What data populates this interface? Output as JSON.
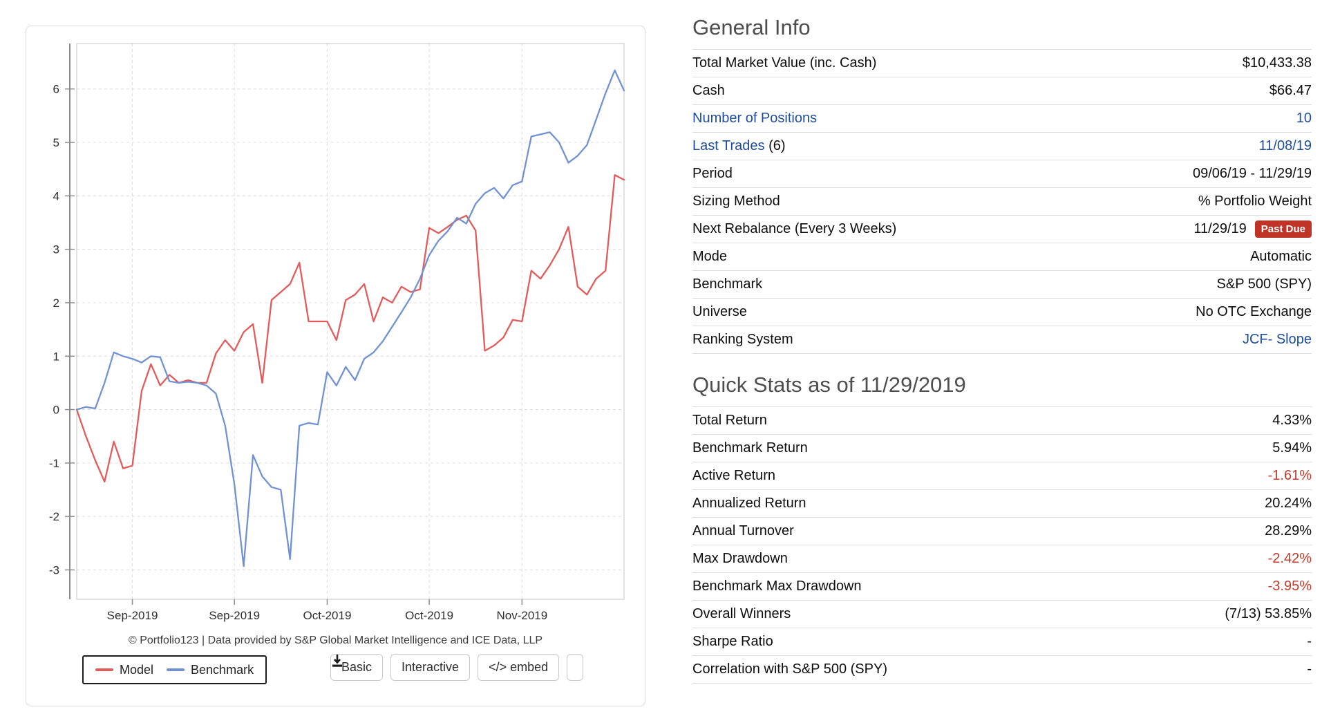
{
  "chart_card": {
    "legend": {
      "model_label": "Model",
      "benchmark_label": "Benchmark"
    },
    "controls": {
      "basic": "Basic",
      "interactive": "Interactive",
      "embed": "</> embed",
      "download_icon": "download-icon"
    },
    "attribution": "© Portfolio123 | Data provided by S&P Global Market Intelligence and ICE Data, LLP"
  },
  "chart_data": {
    "type": "line",
    "title": "",
    "xlabel": "",
    "ylabel": "",
    "grid": true,
    "legend_position": "bottom-left",
    "x_tick_labels": [
      "Sep-2019",
      "Sep-2019",
      "Oct-2019",
      "Oct-2019",
      "Nov-2019"
    ],
    "x_tick_days": [
      6,
      17,
      27,
      38,
      48
    ],
    "y_ticks": [
      6,
      5,
      4,
      3,
      2,
      1,
      0,
      -1,
      -2,
      -3
    ],
    "ylim": [
      -3.55,
      6.85
    ],
    "x_range_dates": "09/06/19 - 11/29/19",
    "series": [
      {
        "name": "Model",
        "color": "#e25b5b",
        "values": [
          0.0,
          -0.5,
          -0.95,
          -1.35,
          -0.6,
          -1.1,
          -1.05,
          0.35,
          0.85,
          0.45,
          0.65,
          0.5,
          0.55,
          0.5,
          0.5,
          1.05,
          1.3,
          1.1,
          1.45,
          1.6,
          0.5,
          2.05,
          2.2,
          2.35,
          2.75,
          1.65,
          1.65,
          1.65,
          1.3,
          2.05,
          2.15,
          2.35,
          1.65,
          2.1,
          2.0,
          2.3,
          2.2,
          2.25,
          3.4,
          3.3,
          3.42,
          3.55,
          3.63,
          3.35,
          1.1,
          1.2,
          1.35,
          1.68,
          1.65,
          2.6,
          2.45,
          2.7,
          3.0,
          3.42,
          2.3,
          2.15,
          2.45,
          2.6,
          4.39,
          4.3
        ]
      },
      {
        "name": "Benchmark",
        "color": "#7191d5",
        "values": [
          0.0,
          0.05,
          0.02,
          0.5,
          1.07,
          1.0,
          0.95,
          0.88,
          1.0,
          0.98,
          0.53,
          0.5,
          0.52,
          0.5,
          0.45,
          0.3,
          -0.3,
          -1.4,
          -2.93,
          -0.85,
          -1.25,
          -1.45,
          -1.5,
          -2.8,
          -0.3,
          -0.25,
          -0.28,
          0.7,
          0.45,
          0.8,
          0.55,
          0.95,
          1.07,
          1.28,
          1.55,
          1.82,
          2.1,
          2.45,
          2.89,
          3.16,
          3.34,
          3.59,
          3.48,
          3.85,
          4.05,
          4.15,
          3.95,
          4.2,
          4.27,
          5.11,
          5.15,
          5.19,
          5.0,
          4.62,
          4.75,
          4.95,
          5.43,
          5.92,
          6.35,
          5.97
        ]
      }
    ]
  },
  "general_info": {
    "title": "General Info",
    "rows": [
      {
        "label": "Total Market Value (inc. Cash)",
        "value": "$10,433.38"
      },
      {
        "label": "Cash",
        "value": "$66.47"
      },
      {
        "label": "Number of Positions",
        "value": "10",
        "label_link": true,
        "value_link": true
      },
      {
        "label": "Last Trades",
        "label_suffix": " (6)",
        "value": "11/08/19",
        "label_link": true,
        "value_link": true
      },
      {
        "label": "Period",
        "value": "09/06/19 - 11/29/19"
      },
      {
        "label": "Sizing Method",
        "value": "% Portfolio Weight"
      },
      {
        "label": "Next Rebalance (Every 3 Weeks)",
        "value": "11/29/19",
        "badge": "Past Due"
      },
      {
        "label": "Mode",
        "value": "Automatic"
      },
      {
        "label": "Benchmark",
        "value": "S&P 500 (SPY)"
      },
      {
        "label": "Universe",
        "value": "No OTC Exchange"
      },
      {
        "label": "Ranking System",
        "value": "JCF- Slope",
        "value_link": true
      }
    ]
  },
  "quick_stats": {
    "title": "Quick Stats as of 11/29/2019",
    "rows": [
      {
        "label": "Total Return",
        "value": "4.33%"
      },
      {
        "label": "Benchmark Return",
        "value": "5.94%"
      },
      {
        "label": "Active Return",
        "value": "-1.61%",
        "negative": true
      },
      {
        "label": "Annualized Return",
        "value": "20.24%"
      },
      {
        "label": "Annual Turnover",
        "value": "28.29%"
      },
      {
        "label": "Max Drawdown",
        "value": "-2.42%",
        "negative": true
      },
      {
        "label": "Benchmark Max Drawdown",
        "value": "-3.95%",
        "negative": true
      },
      {
        "label": "Overall Winners",
        "value": "(7/13) 53.85%"
      },
      {
        "label": "Sharpe Ratio",
        "value": "-"
      },
      {
        "label": "Correlation with S&P 500 (SPY)",
        "value": "-"
      }
    ]
  },
  "colors": {
    "link": "#1d4d9b",
    "negative": "#c23b2b",
    "badge_bg": "#c03427",
    "model_line": "#e25b5b",
    "benchmark_line": "#7191d5",
    "gridline": "#dcdcdc",
    "axis": "#8c8c8c"
  }
}
